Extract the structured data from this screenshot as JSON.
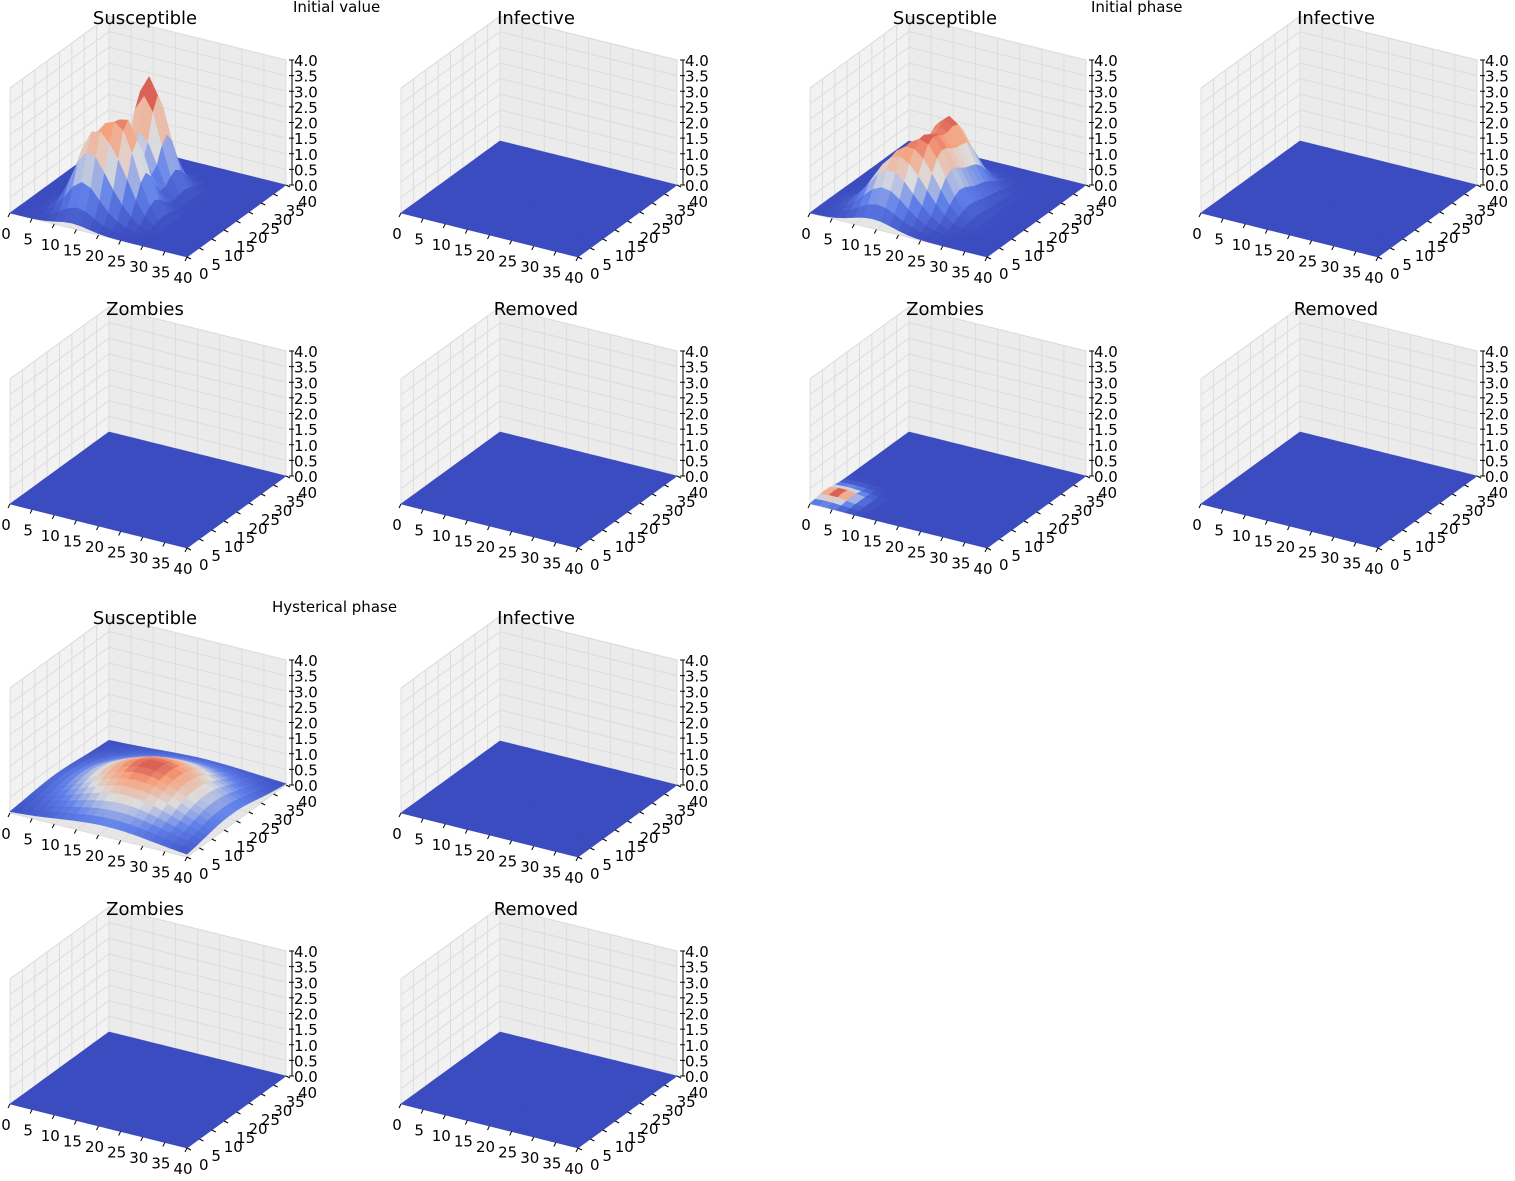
{
  "figure_groups": [
    {
      "title": "Initial value"
    },
    {
      "title": "Initial phase"
    },
    {
      "title": "Hysterical phase"
    }
  ],
  "chart_data": [
    {
      "type": "surface",
      "group": "Initial value",
      "title": "Susceptible",
      "x_ticks": [
        "0",
        "5",
        "10",
        "15",
        "20",
        "25",
        "30",
        "35",
        "40"
      ],
      "y_ticks": [
        "0",
        "5",
        "10",
        "15",
        "20",
        "25",
        "30",
        "35",
        "40"
      ],
      "z_ticks": [
        "0.0",
        "0.5",
        "1.0",
        "1.5",
        "2.0",
        "2.5",
        "3.0",
        "3.5",
        "4.0"
      ],
      "xlim": [
        0,
        40
      ],
      "ylim": [
        0,
        40
      ],
      "zlim": [
        0,
        4
      ],
      "surface": {
        "kind": "peaks",
        "peaks": [
          {
            "x": 14,
            "y": 8,
            "h": 2.3,
            "s": 3.5
          },
          {
            "x": 20,
            "y": 12,
            "h": 2.7,
            "s": 3.5
          },
          {
            "x": 18,
            "y": 24,
            "h": 3.6,
            "s": 3.5
          }
        ]
      }
    },
    {
      "type": "surface",
      "group": "Initial value",
      "title": "Infective",
      "x_ticks": [
        "0",
        "5",
        "10",
        "15",
        "20",
        "25",
        "30",
        "35",
        "40"
      ],
      "y_ticks": [
        "0",
        "5",
        "10",
        "15",
        "20",
        "25",
        "30",
        "35",
        "40"
      ],
      "z_ticks": [
        "0.0",
        "0.5",
        "1.0",
        "1.5",
        "2.0",
        "2.5",
        "3.0",
        "3.5",
        "4.0"
      ],
      "xlim": [
        0,
        40
      ],
      "ylim": [
        0,
        40
      ],
      "zlim": [
        0,
        4
      ],
      "surface": {
        "kind": "flat",
        "level": 0
      }
    },
    {
      "type": "surface",
      "group": "Initial phase",
      "title": "Susceptible",
      "x_ticks": [
        "0",
        "5",
        "10",
        "15",
        "20",
        "25",
        "30",
        "35",
        "40"
      ],
      "y_ticks": [
        "0",
        "5",
        "10",
        "15",
        "20",
        "25",
        "30",
        "35",
        "40"
      ],
      "z_ticks": [
        "0.0",
        "0.5",
        "1.0",
        "1.5",
        "2.0",
        "2.5",
        "3.0",
        "3.5",
        "4.0"
      ],
      "xlim": [
        0,
        40
      ],
      "ylim": [
        0,
        40
      ],
      "zlim": [
        0,
        4
      ],
      "surface": {
        "kind": "peaks",
        "peaks": [
          {
            "x": 14,
            "y": 8,
            "h": 1.5,
            "s": 4.5
          },
          {
            "x": 20,
            "y": 14,
            "h": 1.9,
            "s": 4.5
          },
          {
            "x": 18,
            "y": 24,
            "h": 2.2,
            "s": 4.5
          }
        ]
      }
    },
    {
      "type": "surface",
      "group": "Initial phase",
      "title": "Infective",
      "x_ticks": [
        "0",
        "5",
        "10",
        "15",
        "20",
        "25",
        "30",
        "35",
        "40"
      ],
      "y_ticks": [
        "0",
        "5",
        "10",
        "15",
        "20",
        "25",
        "30",
        "35",
        "40"
      ],
      "z_ticks": [
        "0.0",
        "0.5",
        "1.0",
        "1.5",
        "2.0",
        "2.5",
        "3.0",
        "3.5",
        "4.0"
      ],
      "xlim": [
        0,
        40
      ],
      "ylim": [
        0,
        40
      ],
      "zlim": [
        0,
        4
      ],
      "surface": {
        "kind": "flat",
        "level": 0
      }
    },
    {
      "type": "surface",
      "group": "Initial value",
      "title": "Zombies",
      "x_ticks": [
        "0",
        "5",
        "10",
        "15",
        "20",
        "25",
        "30",
        "35",
        "40"
      ],
      "y_ticks": [
        "0",
        "5",
        "10",
        "15",
        "20",
        "25",
        "30",
        "35",
        "40"
      ],
      "z_ticks": [
        "0.0",
        "0.5",
        "1.0",
        "1.5",
        "2.0",
        "2.5",
        "3.0",
        "3.5",
        "4.0"
      ],
      "xlim": [
        0,
        40
      ],
      "ylim": [
        0,
        40
      ],
      "zlim": [
        0,
        4
      ],
      "surface": {
        "kind": "flat",
        "level": 0
      }
    },
    {
      "type": "surface",
      "group": "Initial value",
      "title": "Removed",
      "x_ticks": [
        "0",
        "5",
        "10",
        "15",
        "20",
        "25",
        "30",
        "35",
        "40"
      ],
      "y_ticks": [
        "0",
        "5",
        "10",
        "15",
        "20",
        "25",
        "30",
        "35",
        "40"
      ],
      "z_ticks": [
        "0.0",
        "0.5",
        "1.0",
        "1.5",
        "2.0",
        "2.5",
        "3.0",
        "3.5",
        "4.0"
      ],
      "xlim": [
        0,
        40
      ],
      "ylim": [
        0,
        40
      ],
      "zlim": [
        0,
        4
      ],
      "surface": {
        "kind": "flat",
        "level": 0
      }
    },
    {
      "type": "surface",
      "group": "Initial phase",
      "title": "Zombies",
      "x_ticks": [
        "0",
        "5",
        "10",
        "15",
        "20",
        "25",
        "30",
        "35",
        "40"
      ],
      "y_ticks": [
        "0",
        "5",
        "10",
        "15",
        "20",
        "25",
        "30",
        "35",
        "40"
      ],
      "z_ticks": [
        "0.0",
        "0.5",
        "1.0",
        "1.5",
        "2.0",
        "2.5",
        "3.0",
        "3.5",
        "4.0"
      ],
      "xlim": [
        0,
        40
      ],
      "ylim": [
        0,
        40
      ],
      "zlim": [
        0,
        4
      ],
      "surface": {
        "kind": "peaks",
        "peaks": [
          {
            "x": 3,
            "y": 6,
            "h": 0.15,
            "s": 3
          }
        ]
      }
    },
    {
      "type": "surface",
      "group": "Initial phase",
      "title": "Removed",
      "x_ticks": [
        "0",
        "5",
        "10",
        "15",
        "20",
        "25",
        "30",
        "35",
        "40"
      ],
      "y_ticks": [
        "0",
        "5",
        "10",
        "15",
        "20",
        "25",
        "30",
        "35",
        "40"
      ],
      "z_ticks": [
        "0.0",
        "0.5",
        "1.0",
        "1.5",
        "2.0",
        "2.5",
        "3.0",
        "3.5",
        "4.0"
      ],
      "xlim": [
        0,
        40
      ],
      "ylim": [
        0,
        40
      ],
      "zlim": [
        0,
        4
      ],
      "surface": {
        "kind": "flat",
        "level": 0
      }
    },
    {
      "type": "surface",
      "group": "Hysterical phase",
      "title": "Susceptible",
      "x_ticks": [
        "0",
        "5",
        "10",
        "15",
        "20",
        "25",
        "30",
        "35",
        "40"
      ],
      "y_ticks": [
        "0",
        "5",
        "10",
        "15",
        "20",
        "25",
        "30",
        "35",
        "40"
      ],
      "z_ticks": [
        "0.0",
        "0.5",
        "1.0",
        "1.5",
        "2.0",
        "2.5",
        "3.0",
        "3.5",
        "4.0"
      ],
      "xlim": [
        0,
        40
      ],
      "ylim": [
        0,
        40
      ],
      "zlim": [
        0,
        4
      ],
      "surface": {
        "kind": "peaks",
        "peaks": [
          {
            "x": 22,
            "y": 18,
            "h": 1.3,
            "s": 11
          }
        ]
      }
    },
    {
      "type": "surface",
      "group": "Hysterical phase",
      "title": "Infective",
      "x_ticks": [
        "0",
        "5",
        "10",
        "15",
        "20",
        "25",
        "30",
        "35",
        "40"
      ],
      "y_ticks": [
        "0",
        "5",
        "10",
        "15",
        "20",
        "25",
        "30",
        "35",
        "40"
      ],
      "z_ticks": [
        "0.0",
        "0.5",
        "1.0",
        "1.5",
        "2.0",
        "2.5",
        "3.0",
        "3.5",
        "4.0"
      ],
      "xlim": [
        0,
        40
      ],
      "ylim": [
        0,
        40
      ],
      "zlim": [
        0,
        4
      ],
      "surface": {
        "kind": "flat",
        "level": 0
      }
    },
    {
      "type": "surface",
      "group": "Hysterical phase",
      "title": "Zombies",
      "x_ticks": [
        "0",
        "5",
        "10",
        "15",
        "20",
        "25",
        "30",
        "35",
        "40"
      ],
      "y_ticks": [
        "0",
        "5",
        "10",
        "15",
        "20",
        "25",
        "30",
        "35",
        "40"
      ],
      "z_ticks": [
        "0.0",
        "0.5",
        "1.0",
        "1.5",
        "2.0",
        "2.5",
        "3.0",
        "3.5",
        "4.0"
      ],
      "xlim": [
        0,
        40
      ],
      "ylim": [
        0,
        40
      ],
      "zlim": [
        0,
        4
      ],
      "surface": {
        "kind": "flat",
        "level": 0
      }
    },
    {
      "type": "surface",
      "group": "Hysterical phase",
      "title": "Removed",
      "x_ticks": [
        "0",
        "5",
        "10",
        "15",
        "20",
        "25",
        "30",
        "35",
        "40"
      ],
      "y_ticks": [
        "0",
        "5",
        "10",
        "15",
        "20",
        "25",
        "30",
        "35",
        "40"
      ],
      "z_ticks": [
        "0.0",
        "0.5",
        "1.0",
        "1.5",
        "2.0",
        "2.5",
        "3.0",
        "3.5",
        "4.0"
      ],
      "xlim": [
        0,
        40
      ],
      "ylim": [
        0,
        40
      ],
      "zlim": [
        0,
        4
      ],
      "surface": {
        "kind": "flat",
        "level": 0
      }
    }
  ]
}
